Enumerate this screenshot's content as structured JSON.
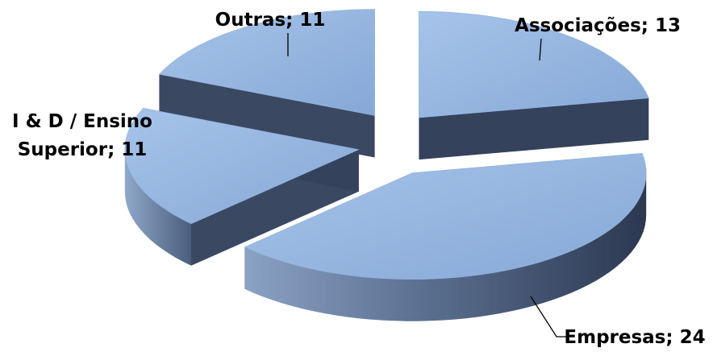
{
  "chart_data": {
    "type": "pie",
    "style": "3d-exploded",
    "categories": [
      "Associações",
      "Empresas",
      "I & D / Ensino Superior",
      "Outras"
    ],
    "values": [
      13,
      24,
      11,
      11
    ],
    "labels": [
      {
        "lines": [
          "Associações; 13"
        ]
      },
      {
        "lines": [
          "Empresas; 24"
        ]
      },
      {
        "lines": [
          "I & D / Ensino",
          "Superior; 11"
        ]
      },
      {
        "lines": [
          "Outras; 11"
        ]
      }
    ],
    "colors": {
      "top_light": "#9bbbe4",
      "top_dark": "#7f9fcd",
      "side_light": "#6f86a8",
      "side_dark": "#33415a"
    }
  }
}
